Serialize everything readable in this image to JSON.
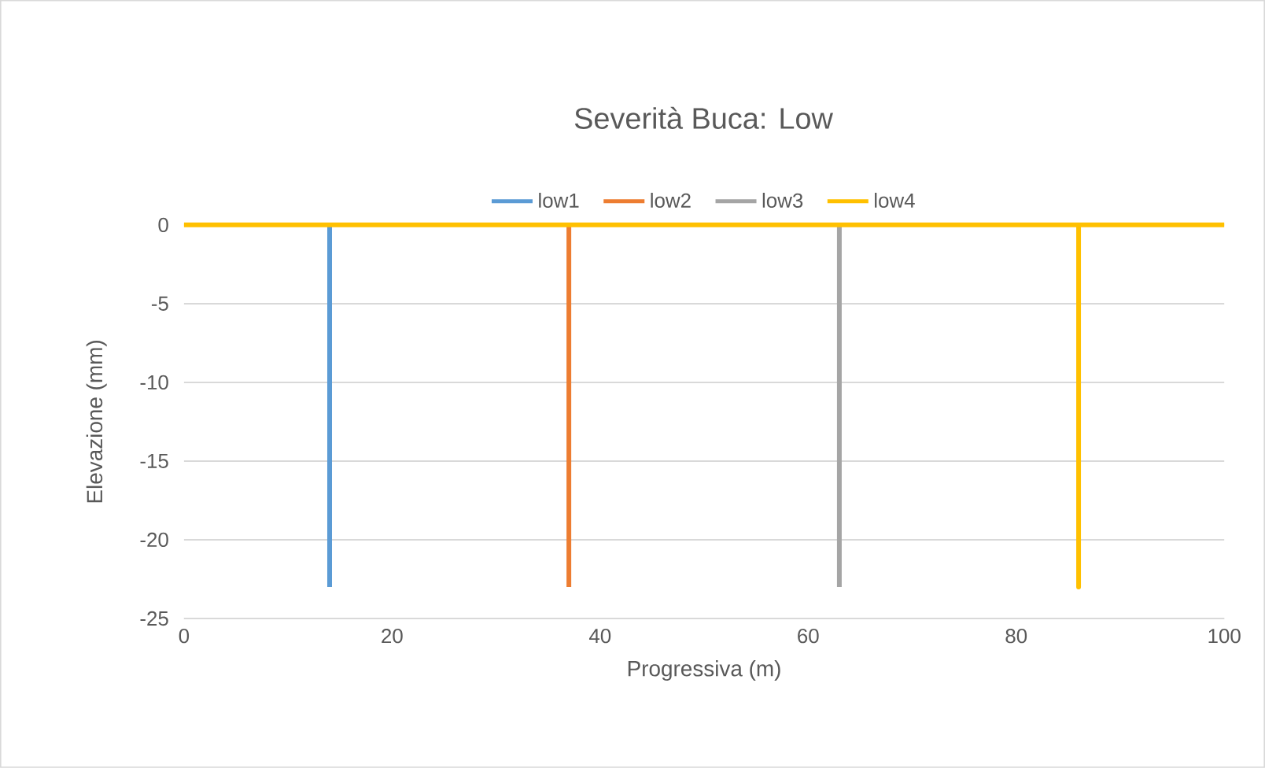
{
  "chart_data": {
    "type": "line",
    "title": "Severità Buca: Low",
    "xlabel": "Progressiva (m)",
    "ylabel": "Elevazione (mm)",
    "series": [
      {
        "name": "low1",
        "color": "#5b9bd5",
        "x": [
          14,
          14
        ],
        "values": [
          0,
          -23
        ]
      },
      {
        "name": "low2",
        "color": "#ed7d31",
        "x": [
          37,
          37
        ],
        "values": [
          0,
          -23
        ]
      },
      {
        "name": "low3",
        "color": "#a5a5a5",
        "x": [
          63,
          63
        ],
        "values": [
          0,
          -23
        ]
      },
      {
        "name": "low4",
        "color": "#ffc000",
        "x": [
          0,
          86,
          86,
          86,
          100
        ],
        "values": [
          0,
          0,
          -23,
          0,
          0
        ]
      }
    ],
    "xlim": [
      0,
      100
    ],
    "xticks": [
      0,
      20,
      40,
      60,
      80,
      100
    ],
    "ylim": [
      -25,
      0
    ],
    "yticks": [
      -25,
      -20,
      -15,
      -10,
      -5,
      0
    ],
    "grid": "y",
    "legend": "top"
  }
}
